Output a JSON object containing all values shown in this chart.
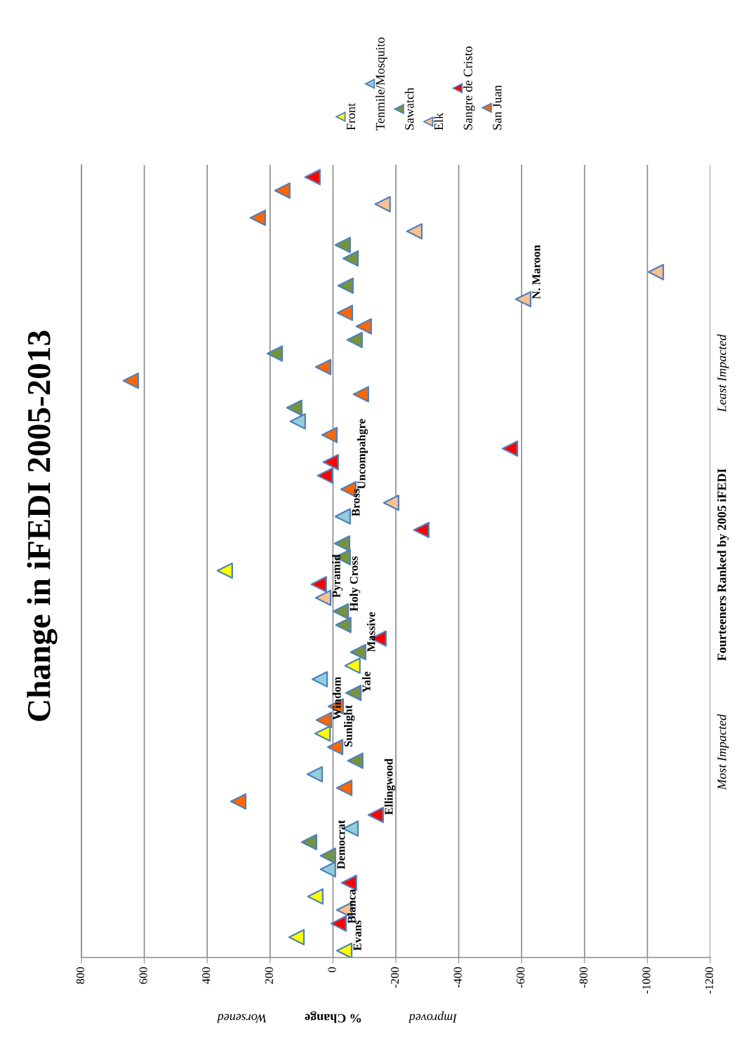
{
  "chart_data": {
    "type": "scatter",
    "title": "Change in iFEDI 2005-2013",
    "xlabel": "% Change",
    "ylabel": "Fourteeners Ranked by 2005 iFEDI",
    "annotations": [
      "Worsened",
      "Improved",
      "Most Impacted",
      "Least Impacted"
    ],
    "orientation": "horizontal",
    "marker": "triangle",
    "grid": "x",
    "legend": "top right",
    "xlim": [
      800,
      -1200
    ],
    "xticks": [
      800,
      600,
      400,
      200,
      0,
      -200,
      -400,
      -600,
      -800,
      -1000,
      -1200
    ],
    "categories": [
      null,
      null,
      null,
      null,
      null,
      null,
      null,
      null,
      null,
      null,
      null,
      null,
      null,
      null,
      null,
      null,
      null,
      null,
      null,
      null,
      null,
      null,
      null,
      null,
      null,
      null,
      null,
      null,
      null,
      null,
      null,
      null,
      null,
      null,
      null,
      null,
      null,
      null,
      null,
      null,
      null,
      null,
      null,
      null,
      null,
      null,
      null,
      null,
      null,
      null,
      null,
      null,
      null,
      null,
      null,
      null,
      null,
      null
    ],
    "series": [
      {
        "name": "Front",
        "color": "#ffff00",
        "values": [
          null,
          null,
          null,
          null,
          null,
          null,
          null,
          null,
          null,
          null,
          null,
          null,
          null,
          null,
          null,
          null,
          null,
          null,
          null,
          null,
          null,
          null,
          null,
          null,
          null,
          null,
          null,
          null,
          null,
          344,
          null,
          null,
          null,
          null,
          null,
          null,
          -62,
          null,
          null,
          null,
          null,
          33,
          null,
          null,
          null,
          null,
          null,
          null,
          null,
          null,
          null,
          null,
          null,
          56,
          null,
          null,
          116,
          -36
        ],
        "value_labels": [
          null,
          null,
          null,
          null,
          null,
          null,
          null,
          null,
          null,
          null,
          null,
          null,
          null,
          null,
          null,
          null,
          null,
          null,
          null,
          null,
          null,
          null,
          null,
          null,
          null,
          null,
          null,
          null,
          null,
          null,
          null,
          null,
          null,
          null,
          null,
          null,
          null,
          null,
          null,
          null,
          null,
          null,
          null,
          null,
          null,
          null,
          null,
          null,
          null,
          null,
          null,
          null,
          null,
          null,
          null,
          null,
          null,
          "Evans"
        ]
      },
      {
        "name": "Tenmile/Mosquito",
        "color": "#92cddc",
        "values": [
          null,
          null,
          null,
          null,
          null,
          null,
          null,
          null,
          null,
          null,
          null,
          null,
          null,
          null,
          null,
          null,
          null,
          null,
          112,
          null,
          null,
          null,
          null,
          null,
          null,
          -31,
          null,
          null,
          null,
          null,
          null,
          null,
          null,
          null,
          null,
          null,
          null,
          42,
          null,
          null,
          null,
          null,
          null,
          null,
          58,
          null,
          null,
          null,
          -56,
          null,
          null,
          16,
          null,
          null,
          null,
          null,
          null,
          null
        ],
        "value_labels": [
          null,
          null,
          null,
          null,
          null,
          null,
          null,
          null,
          null,
          null,
          null,
          null,
          null,
          null,
          null,
          null,
          null,
          null,
          null,
          null,
          null,
          null,
          null,
          null,
          null,
          "Bross",
          null,
          null,
          null,
          null,
          null,
          null,
          null,
          null,
          null,
          null,
          null,
          null,
          null,
          null,
          null,
          null,
          null,
          null,
          null,
          null,
          null,
          null,
          null,
          null,
          null,
          "Democrat",
          null,
          null,
          null,
          null,
          null,
          null
        ]
      },
      {
        "name": "Sawatch",
        "color": "#77933c",
        "values": [
          null,
          null,
          null,
          null,
          null,
          -31,
          -56,
          null,
          -40,
          null,
          null,
          null,
          -69,
          185,
          null,
          null,
          null,
          123,
          null,
          null,
          null,
          null,
          null,
          null,
          null,
          null,
          null,
          -29,
          -31,
          null,
          null,
          null,
          -25,
          -33,
          null,
          -80,
          null,
          null,
          -65,
          null,
          null,
          null,
          null,
          -71,
          null,
          null,
          null,
          null,
          null,
          76,
          16,
          null,
          null,
          null,
          null,
          null,
          null,
          null
        ],
        "value_labels": [
          null,
          null,
          null,
          null,
          null,
          null,
          null,
          null,
          null,
          null,
          null,
          null,
          null,
          null,
          null,
          null,
          null,
          null,
          null,
          null,
          null,
          null,
          null,
          null,
          null,
          null,
          null,
          null,
          null,
          null,
          null,
          null,
          "Holy Cross",
          null,
          null,
          "Massive",
          null,
          null,
          "Yale",
          null,
          null,
          null,
          null,
          null,
          null,
          null,
          null,
          null,
          null,
          null,
          null,
          null,
          null,
          null,
          null,
          null,
          null,
          null
        ]
      },
      {
        "name": "Elk",
        "color": "#fac090",
        "values": [
          null,
          null,
          -158,
          null,
          -259,
          null,
          null,
          -1027,
          null,
          -605,
          null,
          null,
          null,
          null,
          null,
          null,
          null,
          null,
          null,
          null,
          null,
          null,
          null,
          null,
          -185,
          null,
          null,
          null,
          null,
          null,
          null,
          31,
          null,
          null,
          null,
          null,
          null,
          null,
          null,
          null,
          null,
          null,
          null,
          null,
          null,
          null,
          null,
          null,
          null,
          null,
          null,
          null,
          null,
          null,
          -36,
          null,
          null,
          null
        ],
        "value_labels": [
          null,
          null,
          null,
          null,
          null,
          null,
          null,
          null,
          null,
          "N. Maroon",
          null,
          null,
          null,
          null,
          null,
          null,
          null,
          null,
          null,
          null,
          null,
          null,
          null,
          null,
          null,
          null,
          null,
          null,
          null,
          null,
          null,
          "Pyramid",
          null,
          null,
          null,
          null,
          null,
          null,
          null,
          null,
          null,
          null,
          null,
          null,
          null,
          null,
          null,
          null,
          null,
          null,
          null,
          null,
          null,
          null,
          null,
          null,
          null,
          null
        ]
      },
      {
        "name": "Sangre de Cristo",
        "color": "#ff0000",
        "values": [
          65,
          null,
          null,
          null,
          null,
          null,
          null,
          null,
          null,
          null,
          null,
          null,
          null,
          null,
          null,
          null,
          null,
          null,
          null,
          null,
          -563,
          7,
          25,
          null,
          null,
          null,
          -281,
          null,
          null,
          null,
          45,
          null,
          null,
          null,
          -145,
          null,
          null,
          null,
          null,
          null,
          null,
          null,
          null,
          null,
          null,
          null,
          null,
          -136,
          null,
          null,
          null,
          null,
          -51,
          null,
          null,
          -18,
          null,
          null
        ],
        "value_labels": [
          null,
          null,
          null,
          null,
          null,
          null,
          null,
          null,
          null,
          null,
          null,
          null,
          null,
          null,
          null,
          null,
          null,
          null,
          null,
          null,
          null,
          null,
          null,
          null,
          null,
          null,
          null,
          null,
          null,
          null,
          null,
          null,
          null,
          null,
          null,
          null,
          null,
          null,
          null,
          null,
          null,
          null,
          null,
          null,
          null,
          null,
          null,
          "Ellingwood",
          null,
          null,
          null,
          null,
          null,
          null,
          null,
          "Blanca",
          null,
          null
        ]
      },
      {
        "name": "San Juan",
        "color": "#ff6600",
        "values": [
          null,
          161,
          null,
          239,
          null,
          null,
          null,
          null,
          null,
          null,
          -38,
          -98,
          null,
          null,
          31,
          643,
          -89,
          null,
          null,
          11,
          null,
          null,
          null,
          -49,
          null,
          null,
          null,
          null,
          null,
          null,
          null,
          null,
          null,
          null,
          null,
          null,
          null,
          null,
          null,
          -9,
          29,
          null,
          -7,
          null,
          null,
          -36,
          301,
          null,
          null,
          null,
          null,
          null,
          null,
          null,
          null,
          null,
          null,
          null
        ],
        "value_labels": [
          null,
          null,
          null,
          null,
          null,
          null,
          null,
          null,
          null,
          null,
          null,
          null,
          null,
          null,
          null,
          null,
          null,
          null,
          null,
          null,
          null,
          null,
          null,
          "Uncompahgre",
          null,
          null,
          null,
          null,
          null,
          null,
          null,
          null,
          null,
          null,
          null,
          null,
          null,
          null,
          null,
          null,
          "Windom",
          null,
          "Sunlight",
          null,
          null,
          null,
          null,
          null,
          null,
          null,
          null,
          null,
          null,
          null,
          null,
          null,
          null,
          null
        ]
      }
    ]
  }
}
